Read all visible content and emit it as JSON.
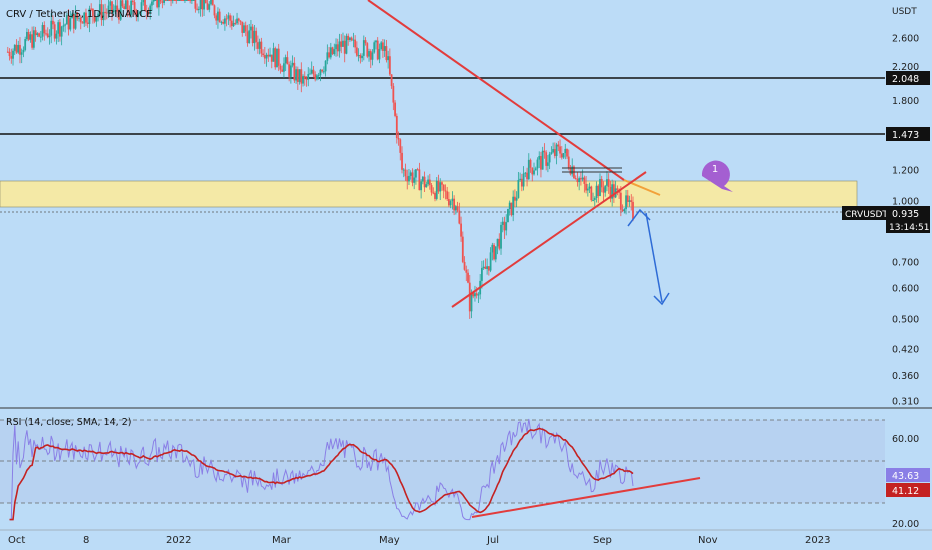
{
  "colors": {
    "background": "#bcdcf7",
    "up": "#26a69a",
    "down": "#ef5350",
    "trendline": "#e23c3c",
    "zone": "#f4e9a6",
    "rsi_line": "#8a7fe6",
    "rsi_sma": "#c42222",
    "arrow": "#2e6bd6",
    "marker": "#a45fd1"
  },
  "header": {
    "symbol_line": "CRV / TetherUS, 1D, BINANCE",
    "currency": "USDT"
  },
  "price_axis": {
    "ticks": [
      "2.600",
      "2.200",
      "1.800",
      "1.200",
      "1.000",
      "0.700",
      "0.600",
      "0.500",
      "0.420",
      "0.360",
      "0.310"
    ],
    "tick_values": [
      2.6,
      2.2,
      1.8,
      1.2,
      1.0,
      0.7,
      0.6,
      0.5,
      0.42,
      0.36,
      0.31
    ],
    "levels": [
      {
        "label": "2.048",
        "value": 2.048
      },
      {
        "label": "1.473",
        "value": 1.473
      }
    ],
    "last_price": {
      "ticker": "CRVUSDT",
      "price": "0.935",
      "countdown": "13:14:51",
      "value": 0.935
    },
    "scale": "log"
  },
  "marker": {
    "label": "1"
  },
  "rsi": {
    "title": "RSI (14, close, SMA, 14, 2)",
    "ticks": [
      "60.00",
      "20.00"
    ],
    "tick_values": [
      60,
      20
    ],
    "band_upper": 70,
    "band_mid": 50,
    "band_lower": 30,
    "value_rsi": "43.63",
    "value_sma": "41.12"
  },
  "time_axis": {
    "labels": [
      "Oct",
      "8",
      "2022",
      "Mar",
      "May",
      "Jul",
      "Sep",
      "Nov",
      "2023"
    ]
  },
  "chart_data": {
    "type": "candlestick",
    "title": "CRV / TetherUS, 1D, BINANCE",
    "yscale": "log",
    "ylim": [
      0.3,
      3.1
    ],
    "zone": [
      0.95,
      1.12
    ],
    "series_anchor_dates": [
      "Oct",
      "2022",
      "Mar",
      "May",
      "Jul",
      "Sep"
    ],
    "price_path": [
      {
        "date": "2021-09-25",
        "price": 2.4
      },
      {
        "date": "2021-10-10",
        "price": 2.6
      },
      {
        "date": "2021-11-10",
        "price": 3.0
      },
      {
        "date": "2021-12-10",
        "price": 3.1
      },
      {
        "date": "2022-01-01",
        "price": 3.5
      },
      {
        "date": "2022-02-05",
        "price": 2.8
      },
      {
        "date": "2022-03-15",
        "price": 2.0
      },
      {
        "date": "2022-04-05",
        "price": 2.5
      },
      {
        "date": "2022-05-01",
        "price": 2.4
      },
      {
        "date": "2022-05-10",
        "price": 1.2
      },
      {
        "date": "2022-06-10",
        "price": 1.0
      },
      {
        "date": "2022-06-18",
        "price": 0.55
      },
      {
        "date": "2022-07-05",
        "price": 0.8
      },
      {
        "date": "2022-07-20",
        "price": 1.2
      },
      {
        "date": "2022-08-10",
        "price": 1.35
      },
      {
        "date": "2022-08-25",
        "price": 1.05
      },
      {
        "date": "2022-09-05",
        "price": 1.1
      },
      {
        "date": "2022-09-20",
        "price": 0.935
      }
    ],
    "rsi_values": [
      {
        "date": "2022-06-20",
        "value": 22
      },
      {
        "date": "2022-07-25",
        "value": 62
      },
      {
        "date": "2022-09-20",
        "value": 43.63
      }
    ],
    "rsi_sma_last": 41.12
  }
}
